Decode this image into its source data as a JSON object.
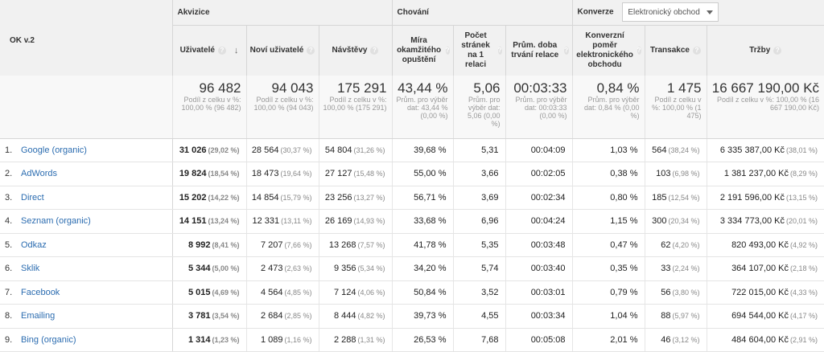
{
  "dimension_label": "OK v.2",
  "groups": {
    "acquisition": "Akvizice",
    "behavior": "Chování",
    "conversions": "Konverze",
    "conversion_select": "Elektronický obchod"
  },
  "columns": [
    "Uživatelé",
    "Noví uživatelé",
    "Návštěvy",
    "Míra okamžitého opuštění",
    "Počet stránek na 1 relaci",
    "Prům. doba trvání relace",
    "Konverzní poměr elektronického obchodu",
    "Transakce",
    "Tržby"
  ],
  "totals": [
    {
      "value": "96 482",
      "sub": "Podíl z celku v %: 100,00 % (96 482)"
    },
    {
      "value": "94 043",
      "sub": "Podíl z celku v %: 100,00 % (94 043)"
    },
    {
      "value": "175 291",
      "sub": "Podíl z celku v %: 100,00 % (175 291)"
    },
    {
      "value": "43,44 %",
      "sub": "Prům. pro výběr dat: 43,44 % (0,00 %)"
    },
    {
      "value": "5,06",
      "sub": "Prům. pro výběr dat: 5,06 (0,00 %)"
    },
    {
      "value": "00:03:33",
      "sub": "Prům. pro výběr dat: 00:03:33 (0,00 %)"
    },
    {
      "value": "0,84 %",
      "sub": "Prům. pro výběr dat: 0,84 % (0,00 %)"
    },
    {
      "value": "1 475",
      "sub": "Podíl z celku v %: 100,00 % (1 475)"
    },
    {
      "value": "16 667 190,00 Kč",
      "sub": "Podíl z celku v %: 100,00 % (16 667 190,00 Kč)"
    }
  ],
  "rows": [
    {
      "n": "1.",
      "name": "Google (organic)",
      "users": "31 026",
      "users_pct": "(29,02 %)",
      "new": "28 564",
      "new_pct": "(30,37 %)",
      "sessions": "54 804",
      "sessions_pct": "(31,26 %)",
      "bounce": "39,68 %",
      "pages": "5,31",
      "dur": "00:04:09",
      "conv": "1,03 %",
      "trans": "564",
      "trans_pct": "(38,24 %)",
      "rev": "6 335 387,00 Kč",
      "rev_pct": "(38,01 %)"
    },
    {
      "n": "2.",
      "name": "AdWords",
      "users": "19 824",
      "users_pct": "(18,54 %)",
      "new": "18 473",
      "new_pct": "(19,64 %)",
      "sessions": "27 127",
      "sessions_pct": "(15,48 %)",
      "bounce": "55,00 %",
      "pages": "3,66",
      "dur": "00:02:05",
      "conv": "0,38 %",
      "trans": "103",
      "trans_pct": "(6,98 %)",
      "rev": "1 381 237,00 Kč",
      "rev_pct": "(8,29 %)"
    },
    {
      "n": "3.",
      "name": "Direct",
      "users": "15 202",
      "users_pct": "(14,22 %)",
      "new": "14 854",
      "new_pct": "(15,79 %)",
      "sessions": "23 256",
      "sessions_pct": "(13,27 %)",
      "bounce": "56,71 %",
      "pages": "3,69",
      "dur": "00:02:34",
      "conv": "0,80 %",
      "trans": "185",
      "trans_pct": "(12,54 %)",
      "rev": "2 191 596,00 Kč",
      "rev_pct": "(13,15 %)"
    },
    {
      "n": "4.",
      "name": "Seznam (organic)",
      "users": "14 151",
      "users_pct": "(13,24 %)",
      "new": "12 331",
      "new_pct": "(13,11 %)",
      "sessions": "26 169",
      "sessions_pct": "(14,93 %)",
      "bounce": "33,68 %",
      "pages": "6,96",
      "dur": "00:04:24",
      "conv": "1,15 %",
      "trans": "300",
      "trans_pct": "(20,34 %)",
      "rev": "3 334 773,00 Kč",
      "rev_pct": "(20,01 %)"
    },
    {
      "n": "5.",
      "name": "Odkaz",
      "users": "8 992",
      "users_pct": "(8,41 %)",
      "new": "7 207",
      "new_pct": "(7,66 %)",
      "sessions": "13 268",
      "sessions_pct": "(7,57 %)",
      "bounce": "41,78 %",
      "pages": "5,35",
      "dur": "00:03:48",
      "conv": "0,47 %",
      "trans": "62",
      "trans_pct": "(4,20 %)",
      "rev": "820 493,00 Kč",
      "rev_pct": "(4,92 %)"
    },
    {
      "n": "6.",
      "name": "Sklik",
      "users": "5 344",
      "users_pct": "(5,00 %)",
      "new": "2 473",
      "new_pct": "(2,63 %)",
      "sessions": "9 356",
      "sessions_pct": "(5,34 %)",
      "bounce": "34,20 %",
      "pages": "5,74",
      "dur": "00:03:40",
      "conv": "0,35 %",
      "trans": "33",
      "trans_pct": "(2,24 %)",
      "rev": "364 107,00 Kč",
      "rev_pct": "(2,18 %)"
    },
    {
      "n": "7.",
      "name": "Facebook",
      "users": "5 015",
      "users_pct": "(4,69 %)",
      "new": "4 564",
      "new_pct": "(4,85 %)",
      "sessions": "7 124",
      "sessions_pct": "(4,06 %)",
      "bounce": "50,84 %",
      "pages": "3,52",
      "dur": "00:03:01",
      "conv": "0,79 %",
      "trans": "56",
      "trans_pct": "(3,80 %)",
      "rev": "722 015,00 Kč",
      "rev_pct": "(4,33 %)"
    },
    {
      "n": "8.",
      "name": "Emailing",
      "users": "3 781",
      "users_pct": "(3,54 %)",
      "new": "2 684",
      "new_pct": "(2,85 %)",
      "sessions": "8 444",
      "sessions_pct": "(4,82 %)",
      "bounce": "39,73 %",
      "pages": "4,55",
      "dur": "00:03:34",
      "conv": "1,04 %",
      "trans": "88",
      "trans_pct": "(5,97 %)",
      "rev": "694 544,00 Kč",
      "rev_pct": "(4,17 %)"
    },
    {
      "n": "9.",
      "name": "Bing (organic)",
      "users": "1 314",
      "users_pct": "(1,23 %)",
      "new": "1 089",
      "new_pct": "(1,16 %)",
      "sessions": "2 288",
      "sessions_pct": "(1,31 %)",
      "bounce": "26,53 %",
      "pages": "7,68",
      "dur": "00:05:08",
      "conv": "2,01 %",
      "trans": "46",
      "trans_pct": "(3,12 %)",
      "rev": "484 604,00 Kč",
      "rev_pct": "(2,91 %)"
    }
  ],
  "icons": {
    "help": "question-icon",
    "sort": "sort-down-arrow-icon",
    "dropdown": "chevron-down-icon"
  }
}
